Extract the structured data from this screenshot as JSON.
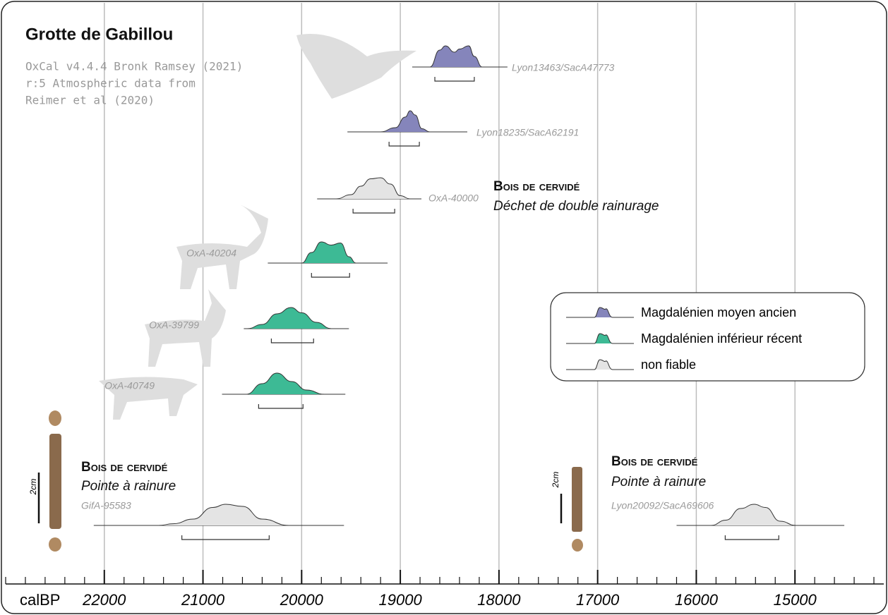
{
  "chart_data": {
    "type": "calibration",
    "title": "Grotte de Gabillou",
    "subtitle": [
      "OxCal v4.4.4 Bronk Ramsey (2021)",
      "r:5 Atmospheric data from",
      "Reimer et al (2020)"
    ],
    "xlabel": "calBP",
    "xlim": [
      23000,
      14100
    ],
    "xticks": [
      22000,
      21000,
      20000,
      19000,
      18000,
      17000,
      16000,
      15000
    ],
    "xminor_step": 200,
    "grid": true,
    "legend": "upper right",
    "series": [
      {
        "name": "Magdalénien moyen ancien",
        "color": "#8585bb",
        "samples": [
          {
            "label": "Lyon13463/SacA47773",
            "extent": [
              18879,
              17914
            ],
            "range": [
              18650,
              18250
            ],
            "x": [
              18700,
              18600,
              18543,
              18450,
              18400,
              18307,
              18250,
              18170
            ],
            "values": [
              0,
              0.8,
              1,
              0.7,
              0.85,
              1,
              0.5,
              0
            ]
          },
          {
            "label": "Lyon18235/SacA62191",
            "extent": [
              19536,
              18321
            ],
            "range": [
              19114,
              18807
            ],
            "x": [
              19200,
              19050,
              18950,
              18900,
              18850,
              18780,
              18700
            ],
            "values": [
              0,
              0.2,
              0.7,
              1,
              0.8,
              0.15,
              0
            ]
          }
        ]
      },
      {
        "name": "Magdalénien inférieur récent",
        "color": "#3dba95",
        "samples": [
          {
            "label": "OxA-40204",
            "extent": [
              20343,
              19129
            ],
            "range": [
              19900,
              19514
            ],
            "x": [
              20000,
              19900,
              19800,
              19700,
              19607,
              19520,
              19450
            ],
            "values": [
              0,
              0.5,
              1,
              0.85,
              0.95,
              0.3,
              0
            ]
          },
          {
            "label": "OxA-39799",
            "extent": [
              20586,
              19521
            ],
            "range": [
              20307,
              19879
            ],
            "x": [
              20550,
              20400,
              20250,
              20107,
              20000,
              19850,
              19700
            ],
            "values": [
              0,
              0.2,
              0.7,
              1,
              0.75,
              0.3,
              0
            ]
          },
          {
            "label": "OxA-40749",
            "extent": [
              20807,
              19557
            ],
            "range": [
              20436,
              19986
            ],
            "x": [
              20560,
              20400,
              20250,
              20100,
              19950,
              19770
            ],
            "values": [
              0,
              0.5,
              1,
              0.6,
              0.2,
              0
            ]
          }
        ]
      },
      {
        "name": "non fiable",
        "color": "#e4e4e4",
        "samples": [
          {
            "label": "OxA-40000",
            "extent": [
              19843,
              18786
            ],
            "range": [
              19479,
              19057
            ],
            "x": [
              19650,
              19500,
              19400,
              19300,
              19200,
              19100,
              19000,
              18900
            ],
            "values": [
              0,
              0.2,
              0.6,
              0.95,
              1,
              0.7,
              0.15,
              0
            ]
          },
          {
            "label": "GifA-95583",
            "extent": [
              22107,
              19571
            ],
            "range": [
              21214,
              20329
            ],
            "x": [
              21450,
              21300,
              21100,
              20900,
              20770,
              20600,
              20400,
              20130
            ],
            "values": [
              0,
              0.08,
              0.3,
              0.85,
              1,
              0.9,
              0.3,
              0
            ]
          },
          {
            "label": "Lyon20092/SacA69606",
            "extent": [
              16200,
              14500
            ],
            "range": [
              15707,
              15164
            ],
            "x": [
              15850,
              15700,
              15550,
              15414,
              15300,
              15150,
              14990
            ],
            "values": [
              0,
              0.25,
              0.8,
              1,
              0.85,
              0.2,
              0
            ]
          }
        ]
      }
    ],
    "annotations": [
      {
        "heading": "Bois de cervidé",
        "text": "Déchet de double rainurage"
      },
      {
        "heading": "Bois de cervidé",
        "text": "Pointe à rainure",
        "scale": "2cm"
      },
      {
        "heading": "Bois de cervidé",
        "text": "Pointe à rainure",
        "scale": "2cm"
      }
    ]
  }
}
